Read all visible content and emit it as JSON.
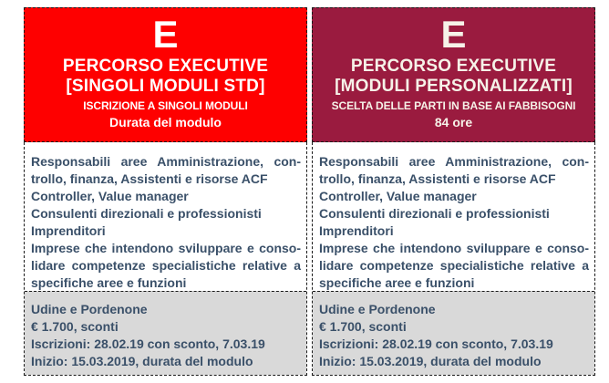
{
  "colors": {
    "border": "#1A1A1A",
    "body_text": "#3A5069",
    "footer_bg": "#D9D9D9",
    "page_bg": "#FFFFFF",
    "header_bg_std": "#FE0000",
    "header_bg_personalizzati": "#9A1B3F"
  },
  "columns": [
    {
      "id": "percorso-executive-singoli-moduli-std",
      "header_bg": "#FE0000",
      "header_text_color": "#FFFFFF",
      "letter": "E",
      "title_line1": "PERCORSO EXECUTIVE",
      "title_line2": "[SINGOLI MODULI STD]",
      "subtitle": "ISCRIZIONE A SINGOLI MODULI",
      "detail": "Durata del modulo",
      "audience_lines": [
        "Responsabili aree Amministrazione, con-",
        "trollo, finanza, Assistenti e risorse ACF",
        "Controller, Value manager",
        "Consulenti direzionali e professionisti",
        "Imprenditori",
        "Imprese che intendono sviluppare e conso-",
        "lidare competenze specialistiche relative a",
        "specifiche aree e funzioni"
      ],
      "info_lines": [
        "Udine e Pordenone",
        "€ 1.700, sconti",
        "Iscrizioni: 28.02.19 con sconto, 7.03.19",
        "Inizio: 15.03.2019, durata del modulo"
      ]
    },
    {
      "id": "percorso-executive-moduli-personalizzati",
      "header_bg": "#9A1B3F",
      "header_text_color": "#F6F2E8",
      "letter": "E",
      "title_line1": "PERCORSO EXECUTIVE",
      "title_line2": "[MODULI PERSONALIZZATI]",
      "subtitle": "SCELTA DELLE PARTI IN BASE AI FABBISOGNI",
      "detail": "84 ore",
      "audience_lines": [
        "Responsabili aree Amministrazione, con-",
        "trollo, finanza, Assistenti e risorse ACF",
        "Controller, Value manager",
        "Consulenti direzionali e professionisti",
        "Imprenditori",
        "Imprese che intendono sviluppare e conso-",
        "lidare competenze specialistiche relative a",
        "specifiche aree e funzioni"
      ],
      "info_lines": [
        "Udine e Pordenone",
        "€ 1.700, sconti",
        "Iscrizioni: 28.02.19 con sconto, 7.03.19",
        "Inizio: 15.03.2019, durata del modulo"
      ]
    }
  ]
}
